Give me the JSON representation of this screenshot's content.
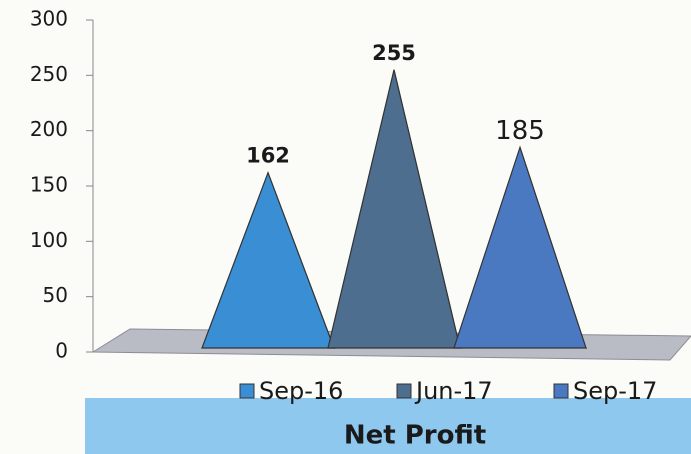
{
  "chart_data": {
    "type": "pyramid",
    "title": "Net Profit",
    "series": [
      {
        "name": "Sep-16",
        "color": "#3a8fd4",
        "values": [
          162
        ]
      },
      {
        "name": "Jun-17",
        "color": "#4d6e8e",
        "values": [
          255
        ]
      },
      {
        "name": "Sep-17",
        "color": "#4a79c2",
        "values": [
          185
        ]
      }
    ],
    "ylim": [
      0,
      300
    ],
    "yticks": [
      0,
      50,
      100,
      150,
      200,
      250,
      300
    ]
  }
}
